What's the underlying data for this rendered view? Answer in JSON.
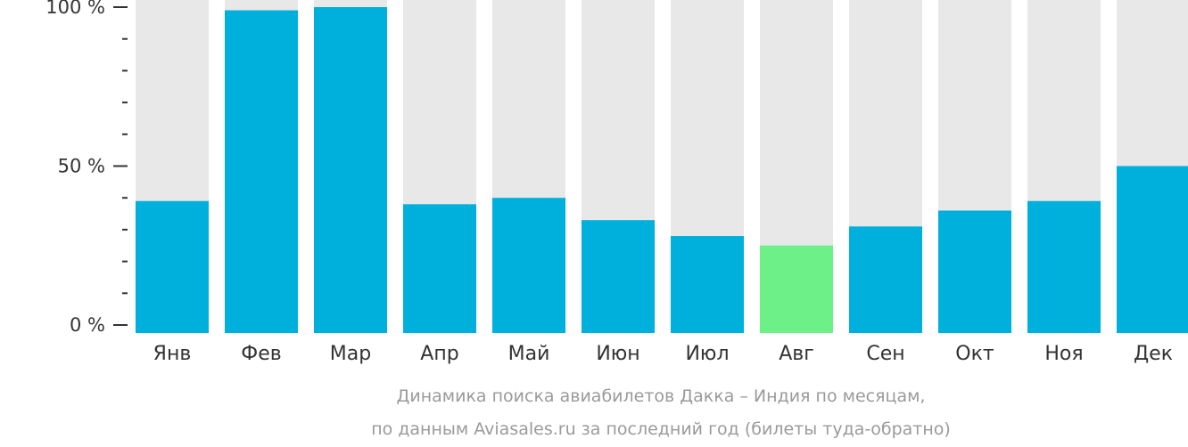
{
  "chart_data": {
    "type": "bar",
    "categories": [
      "Янв",
      "Фев",
      "Мар",
      "Апр",
      "Май",
      "Июн",
      "Июл",
      "Авг",
      "Сен",
      "Окт",
      "Ноя",
      "Дек"
    ],
    "values": [
      39,
      99,
      100,
      38,
      40,
      33,
      28,
      25,
      31,
      36,
      39,
      50
    ],
    "highlight_index": 7,
    "ylim": [
      0,
      100
    ],
    "yticks": [
      {
        "value": 0,
        "label": "0 %"
      },
      {
        "value": 50,
        "label": "50 %"
      },
      {
        "value": 100,
        "label": "100 %"
      }
    ],
    "minor_ticks": [
      10,
      20,
      30,
      40,
      60,
      70,
      80,
      90
    ],
    "caption_lines": [
      "Динамика поиска авиабилетов Дакка – Индия по месяцам,",
      "по данным Aviasales.ru за последний год (билеты туда-обратно)"
    ],
    "colors": {
      "bar": "#00b0dc",
      "highlight": "#6cf087",
      "background_bar": "#e8e8e8",
      "axis": "#333333",
      "caption": "#9a9a9a"
    }
  }
}
